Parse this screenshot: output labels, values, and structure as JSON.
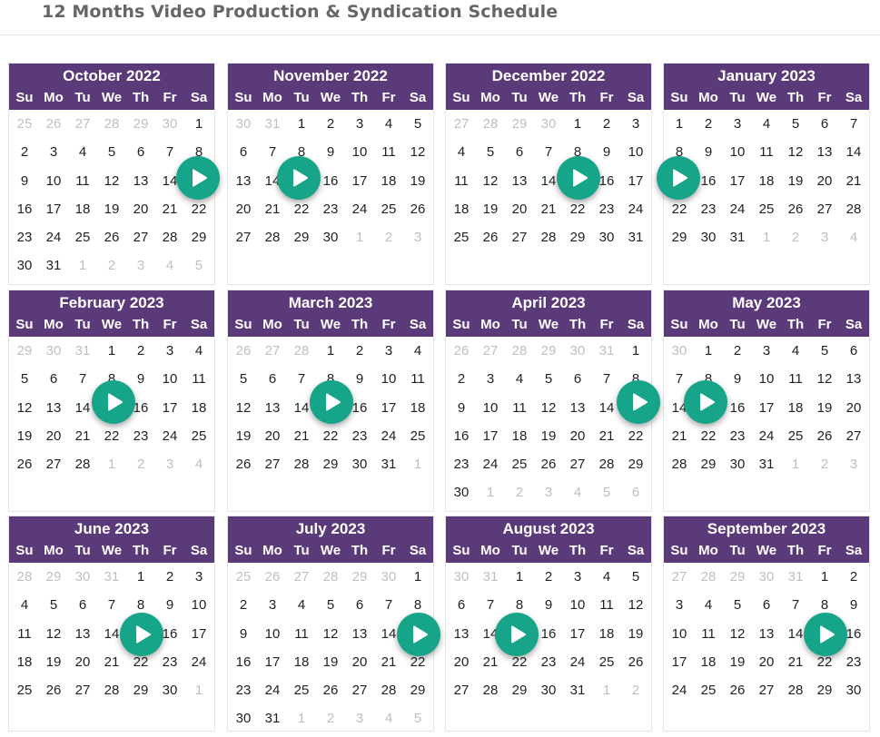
{
  "title": "12 Months Video Production & Syndication Schedule",
  "weekdays": [
    "Su",
    "Mo",
    "Tu",
    "We",
    "Th",
    "Fr",
    "Sa"
  ],
  "colors": {
    "header": "#5b3a7a",
    "play": "#17a589",
    "muted": "#bfbfbf"
  },
  "months": [
    {
      "name": "October 2022",
      "first_weekday": 6,
      "days": 31,
      "prev_days": 30,
      "weeks": 6
    },
    {
      "name": "November 2022",
      "first_weekday": 2,
      "days": 30,
      "prev_days": 31,
      "weeks": 5
    },
    {
      "name": "December 2022",
      "first_weekday": 4,
      "days": 31,
      "prev_days": 30,
      "weeks": 5
    },
    {
      "name": "January 2023",
      "first_weekday": 0,
      "days": 31,
      "prev_days": 31,
      "weeks": 5
    },
    {
      "name": "February 2023",
      "first_weekday": 3,
      "days": 28,
      "prev_days": 31,
      "weeks": 5
    },
    {
      "name": "March 2023",
      "first_weekday": 3,
      "days": 31,
      "prev_days": 28,
      "weeks": 5
    },
    {
      "name": "April 2023",
      "first_weekday": 6,
      "days": 30,
      "prev_days": 31,
      "weeks": 6
    },
    {
      "name": "May 2023",
      "first_weekday": 1,
      "days": 31,
      "prev_days": 30,
      "weeks": 5
    },
    {
      "name": "June 2023",
      "first_weekday": 4,
      "days": 30,
      "prev_days": 31,
      "weeks": 5
    },
    {
      "name": "July 2023",
      "first_weekday": 6,
      "days": 31,
      "prev_days": 30,
      "weeks": 6
    },
    {
      "name": "August 2023",
      "first_weekday": 2,
      "days": 31,
      "prev_days": 31,
      "weeks": 5
    },
    {
      "name": "September 2023",
      "first_weekday": 5,
      "days": 30,
      "prev_days": 31,
      "weeks": 5
    }
  ],
  "play_buttons": [
    {
      "icon": "play-icon"
    },
    {
      "icon": "play-icon"
    },
    {
      "icon": "play-icon"
    },
    {
      "icon": "play-icon"
    },
    {
      "icon": "play-icon"
    },
    {
      "icon": "play-icon"
    },
    {
      "icon": "play-icon"
    },
    {
      "icon": "play-icon"
    },
    {
      "icon": "play-icon"
    },
    {
      "icon": "play-icon"
    },
    {
      "icon": "play-icon"
    },
    {
      "icon": "play-icon"
    }
  ]
}
